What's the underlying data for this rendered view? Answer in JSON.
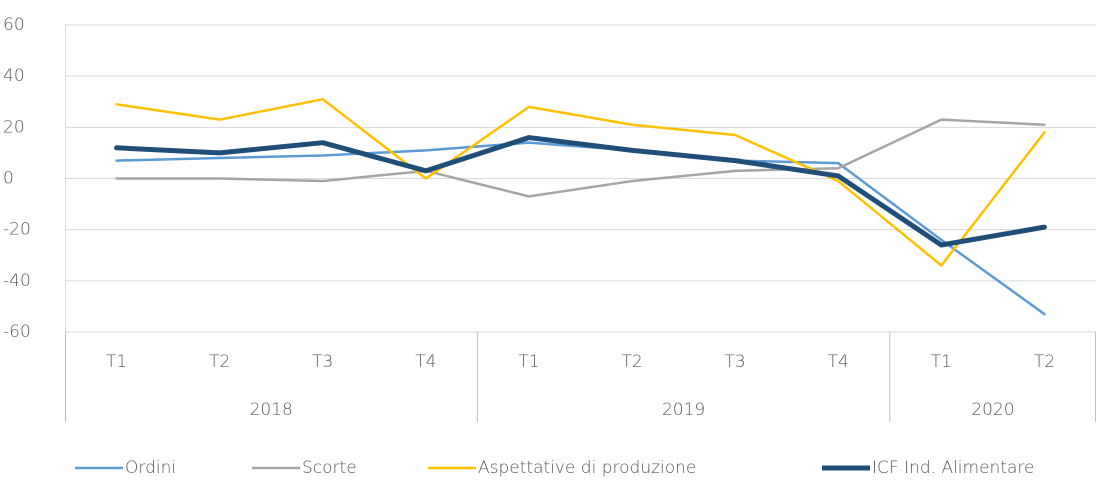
{
  "chart_data": {
    "type": "line",
    "category_groups": [
      {
        "name": "2018",
        "categories": [
          "T1",
          "T2",
          "T3",
          "T4"
        ]
      },
      {
        "name": "2019",
        "categories": [
          "T1",
          "T2",
          "T3",
          "T4"
        ]
      },
      {
        "name": "2020",
        "categories": [
          "T1",
          "T2"
        ]
      }
    ],
    "series": [
      {
        "name": "Ordini",
        "color": "#5b9bd5",
        "values": [
          7,
          8,
          9,
          11,
          14,
          11,
          7,
          6,
          -24,
          -53
        ]
      },
      {
        "name": "Scorte",
        "color": "#a5a5a5",
        "values": [
          0,
          0,
          -1,
          3,
          -7,
          -1,
          3,
          4,
          23,
          21
        ]
      },
      {
        "name": "Aspettative di produzione",
        "color": "#ffc000",
        "values": [
          29,
          23,
          31,
          0,
          28,
          21,
          17,
          -1,
          -34,
          18
        ]
      },
      {
        "name": "ICF Ind. Alimentare",
        "color": "#1f4e79",
        "values": [
          12,
          10,
          14,
          3,
          16,
          11,
          7,
          1,
          -26,
          -19
        ]
      }
    ],
    "ylim": [
      -60,
      60
    ],
    "yticks": [
      -60,
      -40,
      -20,
      0,
      20,
      40,
      60
    ],
    "grid": true,
    "legend": "bottom"
  }
}
